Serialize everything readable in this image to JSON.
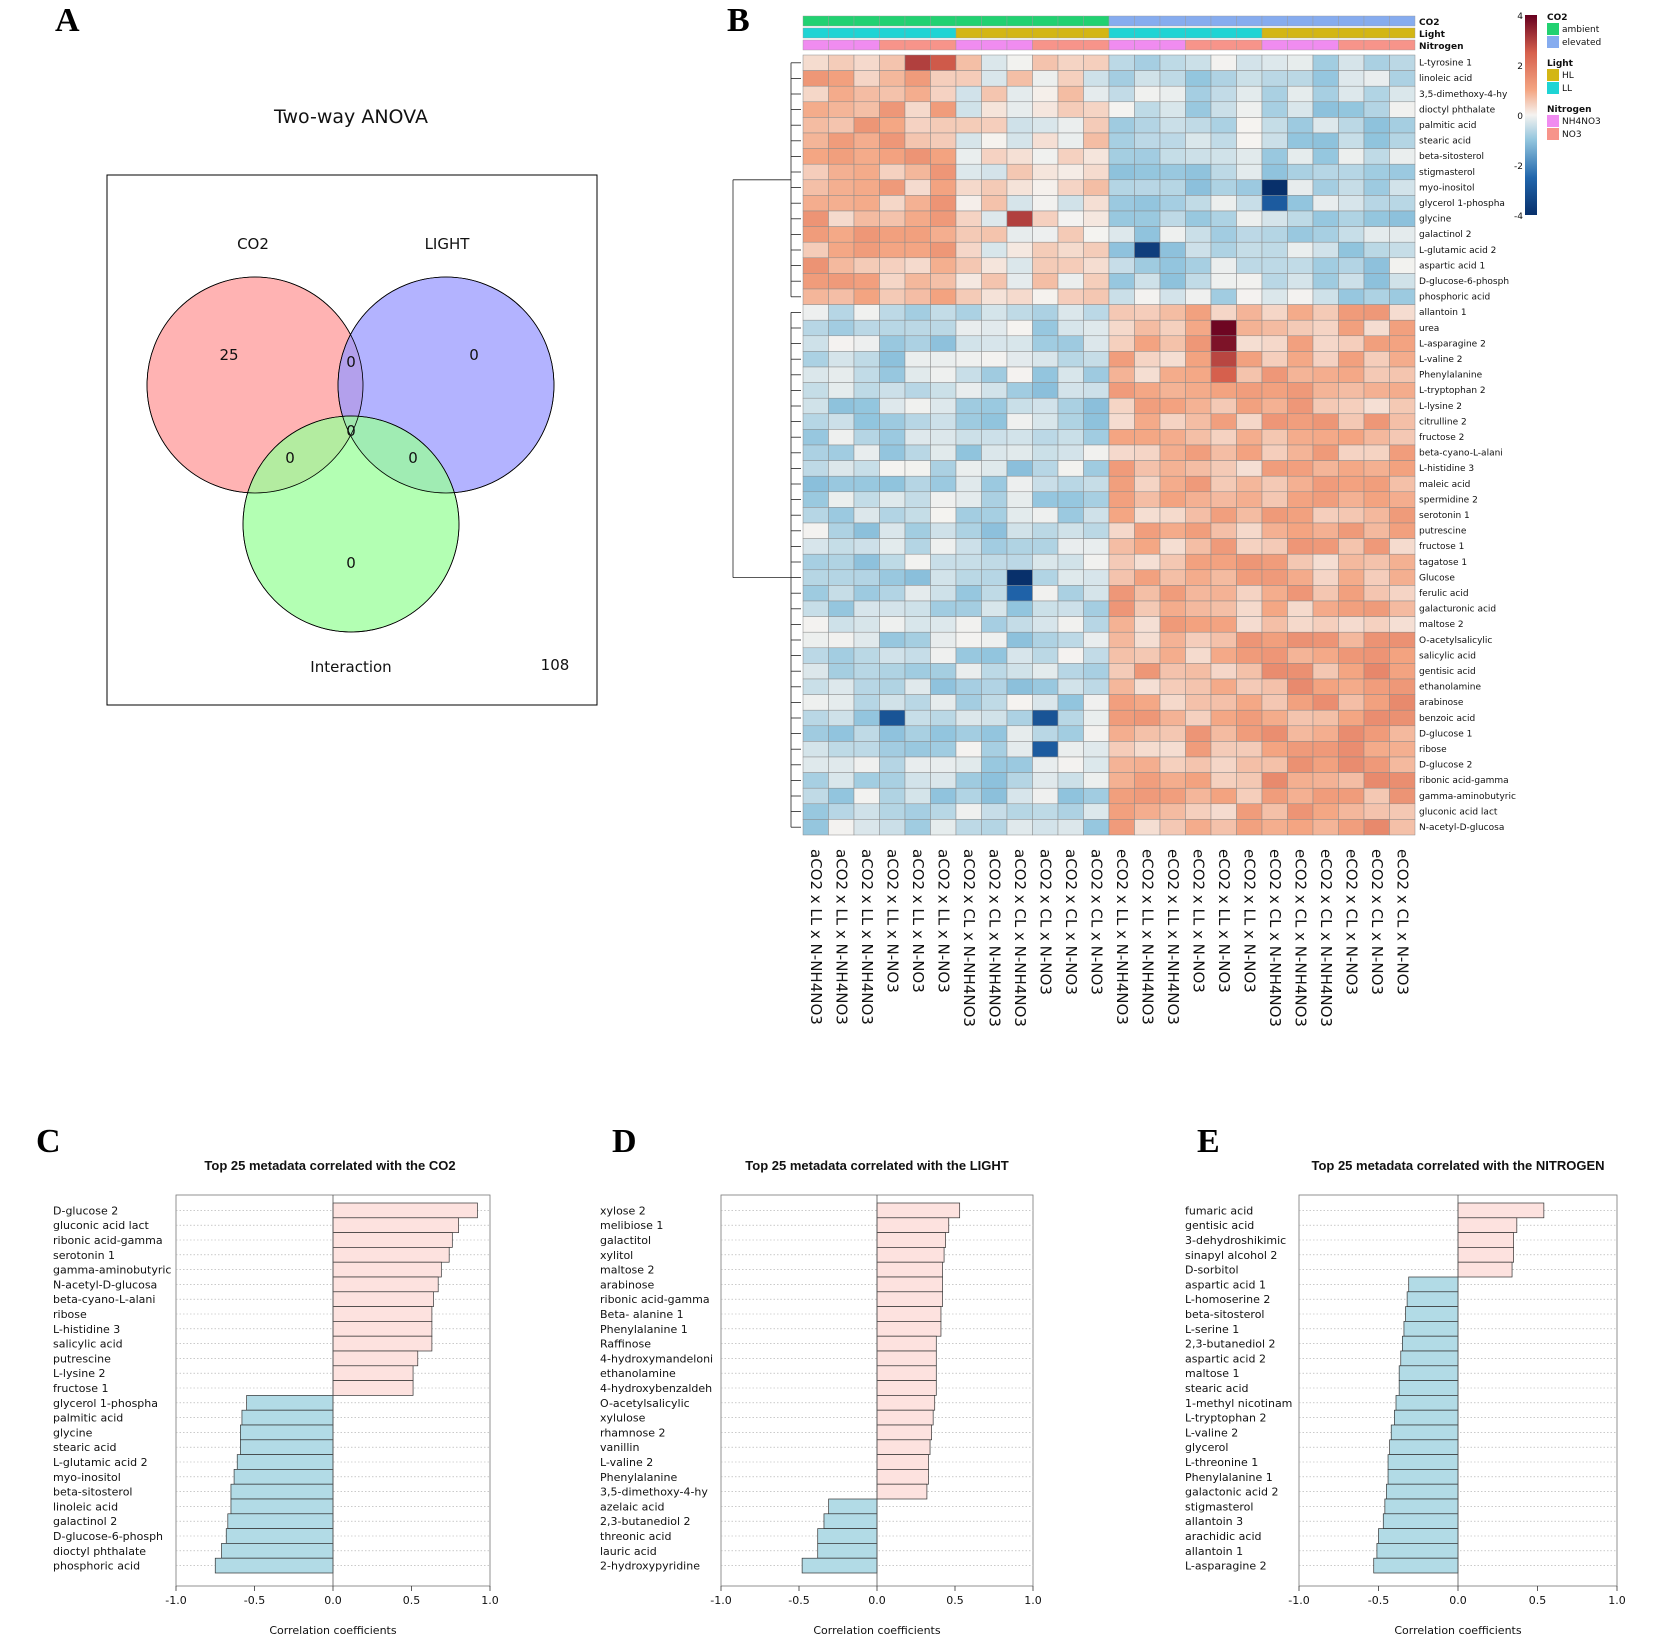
{
  "panels": {
    "a": "A",
    "b": "B",
    "c": "C",
    "d": "D",
    "e": "E"
  },
  "venn": {
    "title": "Two-way ANOVA",
    "sets": [
      "CO2",
      "LIGHT",
      "Interaction"
    ],
    "counts": {
      "co2_only": "25",
      "light_only": "0",
      "co2_light": "0",
      "all_three": "0",
      "co2_interaction": "0",
      "light_interaction": "0",
      "interaction_only": "0",
      "outside": "108"
    },
    "colors": {
      "co2": "#ff9999",
      "light": "#9999ff",
      "interaction": "#99ff99"
    }
  },
  "heatmap": {
    "annotation_titles": {
      "co2": "CO2",
      "light": "Light",
      "nitrogen": "Nitrogen"
    },
    "legend": {
      "scale_ticks": [
        "4",
        "2",
        "0",
        "-2",
        "-4"
      ],
      "co2_title": "CO2",
      "co2_levels": [
        "ambient",
        "elevated"
      ],
      "light_title": "Light",
      "light_levels": [
        "HL",
        "LL"
      ],
      "nitrogen_title": "Nitrogen",
      "nitrogen_levels": [
        "NH4NO3",
        "NO3"
      ],
      "colors": {
        "ambient": "#22d171",
        "elevated": "#86acef",
        "HL": "#d3b615",
        "LL": "#1fd4d4",
        "NH4NO3": "#f08cf0",
        "NO3": "#f7948a"
      }
    },
    "columns": [
      "aCO2 x LL x N-NH4NO3",
      "aCO2 x LL x N-NH4NO3",
      "aCO2 x LL x N-NH4NO3",
      "aCO2 x LL x N-NO3",
      "aCO2 x LL x N-NO3",
      "aCO2 x LL x N-NO3",
      "aCO2 x CL x N-NH4NO3",
      "aCO2 x CL x N-NH4NO3",
      "aCO2 x CL x N-NH4NO3",
      "aCO2 x CL x N-NO3",
      "aCO2 x CL x N-NO3",
      "aCO2 x CL x N-NO3",
      "eCO2 x LL x N-NH4NO3",
      "eCO2 x LL x N-NH4NO3",
      "eCO2 x LL x N-NH4NO3",
      "eCO2 x LL x N-NO3",
      "eCO2 x LL x N-NO3",
      "eCO2 x LL x N-NO3",
      "eCO2 x CL x N-NH4NO3",
      "eCO2 x CL x N-NH4NO3",
      "eCO2 x CL x N-NH4NO3",
      "eCO2 x CL x N-NO3",
      "eCO2 x CL x N-NO3",
      "eCO2 x CL x N-NO3"
    ],
    "column_co2": [
      "ambient",
      "ambient",
      "ambient",
      "ambient",
      "ambient",
      "ambient",
      "ambient",
      "ambient",
      "ambient",
      "ambient",
      "ambient",
      "ambient",
      "elevated",
      "elevated",
      "elevated",
      "elevated",
      "elevated",
      "elevated",
      "elevated",
      "elevated",
      "elevated",
      "elevated",
      "elevated",
      "elevated"
    ],
    "column_light": [
      "LL",
      "LL",
      "LL",
      "LL",
      "LL",
      "LL",
      "HL",
      "HL",
      "HL",
      "HL",
      "HL",
      "HL",
      "LL",
      "LL",
      "LL",
      "LL",
      "LL",
      "LL",
      "HL",
      "HL",
      "HL",
      "HL",
      "HL",
      "HL"
    ],
    "column_nitrogen": [
      "NH4NO3",
      "NH4NO3",
      "NH4NO3",
      "NO3",
      "NO3",
      "NO3",
      "NH4NO3",
      "NH4NO3",
      "NH4NO3",
      "NO3",
      "NO3",
      "NO3",
      "NH4NO3",
      "NH4NO3",
      "NH4NO3",
      "NO3",
      "NO3",
      "NO3",
      "NH4NO3",
      "NH4NO3",
      "NH4NO3",
      "NO3",
      "NO3",
      "NO3"
    ],
    "rows": [
      "L-tyrosine 1",
      "linoleic acid",
      "3,5-dimethoxy-4-hy",
      "dioctyl phthalate",
      "palmitic acid",
      "stearic acid",
      "beta-sitosterol",
      "stigmasterol",
      "myo-inositol",
      "glycerol 1-phospha",
      "glycine",
      "galactinol 2",
      "L-glutamic acid 2",
      "aspartic acid 1",
      "D-glucose-6-phosph",
      "phosphoric acid",
      "allantoin 1",
      "urea",
      "L-asparagine 2",
      "L-valine 2",
      "Phenylalanine",
      "L-tryptophan 2",
      "L-lysine 2",
      "citrulline 2",
      "fructose 2",
      "beta-cyano-L-alani",
      "L-histidine 3",
      "maleic acid",
      "spermidine 2",
      "serotonin 1",
      "putrescine",
      "fructose 1",
      "tagatose 1",
      "Glucose",
      "ferulic acid",
      "galacturonic acid",
      "maltose  2",
      "O-acetylsalicylic",
      "salicylic acid",
      "gentisic acid",
      "ethanolamine",
      "arabinose",
      "benzoic acid",
      "D-glucose 1",
      "ribose",
      "D-glucose 2",
      "ribonic acid-gamma",
      "gamma-aminobutyric",
      "gluconic acid lact",
      "N-acetyl-D-glucosa"
    ],
    "special_cells": [
      {
        "row": 0,
        "col": 4,
        "value": 3.0
      },
      {
        "row": 0,
        "col": 5,
        "value": 2.6
      },
      {
        "row": 10,
        "col": 8,
        "value": 3.0
      },
      {
        "row": 17,
        "col": 16,
        "value": 3.9
      },
      {
        "row": 18,
        "col": 16,
        "value": 3.7
      },
      {
        "row": 19,
        "col": 16,
        "value": 2.9
      },
      {
        "row": 20,
        "col": 16,
        "value": 2.5
      },
      {
        "row": 8,
        "col": 18,
        "value": -4.0
      },
      {
        "row": 9,
        "col": 18,
        "value": -2.8
      },
      {
        "row": 12,
        "col": 13,
        "value": -3.6
      },
      {
        "row": 33,
        "col": 8,
        "value": -4.0
      },
      {
        "row": 34,
        "col": 8,
        "value": -2.6
      },
      {
        "row": 42,
        "col": 3,
        "value": -3.0
      },
      {
        "row": 42,
        "col": 9,
        "value": -3.0
      },
      {
        "row": 44,
        "col": 9,
        "value": -2.8
      }
    ]
  },
  "chart_data": [
    {
      "type": "bar",
      "orientation": "horizontal",
      "title": "Top 25 metadata correlated with the CO2",
      "xlabel": "Correlation coefficients",
      "xlim": [
        -1.0,
        1.0
      ],
      "xticks": [
        "-1.0",
        "-0.5",
        "0.0",
        "0.5",
        "1.0"
      ],
      "categories": [
        "D-glucose 2",
        "gluconic acid lact",
        "ribonic acid-gamma",
        "serotonin 1",
        "gamma-aminobutyric",
        "N-acetyl-D-glucosa",
        "beta-cyano-L-alani",
        "ribose",
        "L-histidine 3",
        "salicylic acid",
        "putrescine",
        "L-lysine 2",
        "fructose 1",
        "glycerol 1-phospha",
        "palmitic acid",
        "glycine",
        "stearic acid",
        "L-glutamic acid 2",
        "myo-inositol",
        "beta-sitosterol",
        "linoleic acid",
        "galactinol 2",
        "D-glucose-6-phosph",
        "dioctyl phthalate",
        "phosphoric acid"
      ],
      "values": [
        0.92,
        0.8,
        0.76,
        0.74,
        0.69,
        0.67,
        0.64,
        0.63,
        0.63,
        0.63,
        0.54,
        0.51,
        0.51,
        -0.55,
        -0.58,
        -0.59,
        -0.59,
        -0.61,
        -0.63,
        -0.65,
        -0.65,
        -0.67,
        -0.68,
        -0.71,
        -0.75
      ]
    },
    {
      "type": "bar",
      "orientation": "horizontal",
      "title": "Top 25 metadata correlated with the LIGHT",
      "xlabel": "Correlation coefficients",
      "xlim": [
        -1.0,
        1.0
      ],
      "xticks": [
        "-1.0",
        "-0.5",
        "0.0",
        "0.5",
        "1.0"
      ],
      "categories": [
        "xylose 2",
        "melibiose 1",
        "galactitol",
        "xylitol",
        "maltose  2",
        "arabinose",
        "ribonic acid-gamma",
        "Beta- alanine  1",
        "Phenylalanine 1",
        "Raffinose",
        "4-hydroxymandeloni",
        "ethanolamine",
        "4-hydroxybenzaldeh",
        "O-acetylsalicylic",
        "xylulose",
        "rhamnose 2",
        "vanillin",
        "L-valine 2",
        "Phenylalanine",
        "3,5-dimethoxy-4-hy",
        "azelaic acid",
        "2,3-butanediol 2",
        "threonic acid",
        "lauric acid",
        "2-hydroxypyridine"
      ],
      "values": [
        0.53,
        0.46,
        0.44,
        0.43,
        0.42,
        0.42,
        0.42,
        0.41,
        0.41,
        0.38,
        0.38,
        0.38,
        0.38,
        0.37,
        0.36,
        0.35,
        0.34,
        0.33,
        0.33,
        0.32,
        -0.31,
        -0.34,
        -0.38,
        -0.38,
        -0.48
      ]
    },
    {
      "type": "bar",
      "orientation": "horizontal",
      "title": "Top 25 metadata correlated with the NITROGEN",
      "xlabel": "Correlation coefficients",
      "xlim": [
        -1.0,
        1.0
      ],
      "xticks": [
        "-1.0",
        "-0.5",
        "0.0",
        "0.5",
        "1.0"
      ],
      "categories": [
        "fumaric acid",
        "gentisic acid",
        "3-dehydroshikimic",
        "sinapyl alcohol 2",
        "D-sorbitol",
        "aspartic acid 1",
        "L-homoserine 2",
        "beta-sitosterol",
        "L-serine 1",
        "2,3-butanediol 2",
        "aspartic acid 2",
        "maltose 1",
        "stearic acid",
        "1-methyl nicotinam",
        "L-tryptophan 2",
        "L-valine 2",
        "glycerol",
        "L-threonine 1",
        "Phenylalanine 1",
        "galactonic acid 2",
        "stigmasterol",
        "allantoin 3",
        "arachidic acid",
        "allantoin 1",
        "L-asparagine 2"
      ],
      "values": [
        0.54,
        0.37,
        0.35,
        0.35,
        0.34,
        -0.31,
        -0.32,
        -0.33,
        -0.34,
        -0.35,
        -0.36,
        -0.37,
        -0.37,
        -0.39,
        -0.4,
        -0.42,
        -0.43,
        -0.44,
        -0.44,
        -0.45,
        -0.46,
        -0.47,
        -0.5,
        -0.51,
        -0.53
      ]
    }
  ]
}
